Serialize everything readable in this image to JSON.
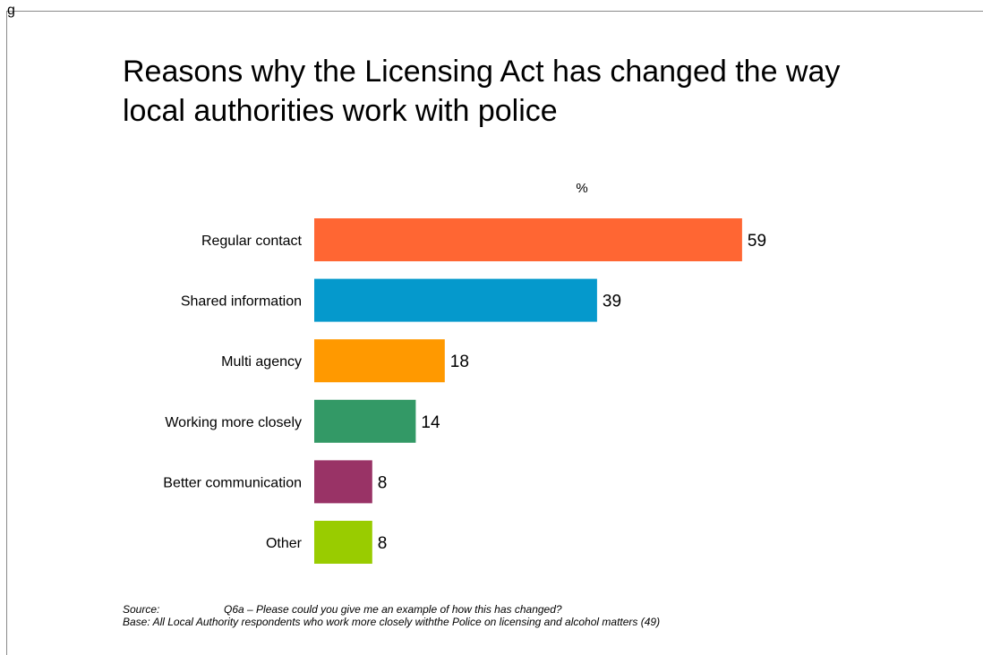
{
  "corner_mark": "g",
  "chart_data": {
    "type": "bar",
    "orientation": "horizontal",
    "title": "Reasons why the Licensing Act has changed the way local authorities work with police",
    "unit_label": "%",
    "categories": [
      "Regular contact",
      "Shared information",
      "Multi agency",
      "Working more closely",
      "Better communication",
      "Other"
    ],
    "values": [
      59,
      39,
      18,
      14,
      8,
      8
    ],
    "colors": [
      "#ff6633",
      "#0599cc",
      "#ff9900",
      "#339966",
      "#993366",
      "#99cc00"
    ],
    "xlim": [
      0,
      100
    ],
    "grid": false,
    "legend": "none"
  },
  "footnote": {
    "source_label": "Source:",
    "source_text": "Q6a – Please could you give me an example of how this has changed?",
    "base_text": "Base: All Local Authority respondents who work more closely withthe Police on licensing and alcohol matters (49)"
  }
}
